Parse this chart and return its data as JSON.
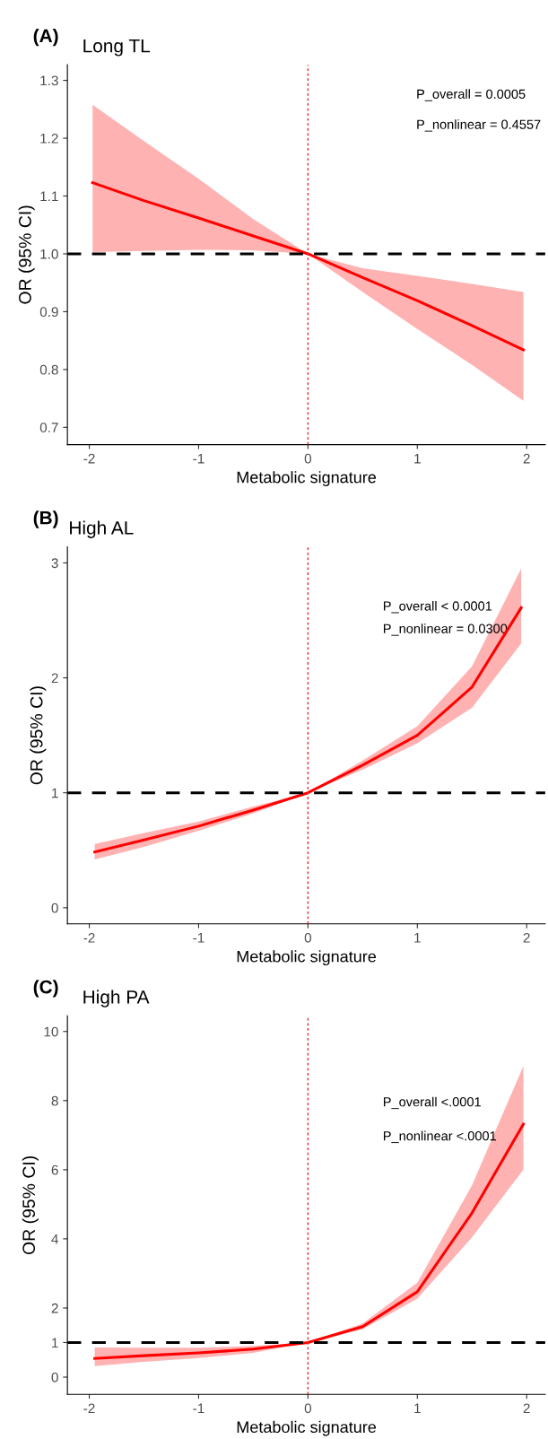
{
  "chart_data": [
    {
      "type": "line",
      "title": "(A)",
      "subtitle": "Long TL",
      "xlabel": "Metabolic signature",
      "ylabel": "OR (95% CI)",
      "xlim": [
        -2.2,
        2.17
      ],
      "xticks": [
        -2,
        -1,
        0,
        1,
        2
      ],
      "ylim": [
        0.67,
        1.327
      ],
      "yticks": [
        0.7,
        0.8,
        0.9,
        {
          "value": 1,
          "label": "1.0"
        },
        1.1,
        1.2,
        1.3
      ],
      "grid": false,
      "legend": false,
      "annotations": [
        "P_overall = 0.0005",
        "P_nonlinear = 0.4557"
      ],
      "ref_lines": [
        {
          "axis": "y",
          "value": 1,
          "color": "#000000",
          "line_style": "dashed"
        },
        {
          "axis": "x",
          "value": 0,
          "color": "#e8262b",
          "line_style": "dotted"
        }
      ],
      "series": [
        {
          "color": "#ff0000",
          "x": [
            -1.97,
            -1.5,
            -1,
            -0.5,
            0,
            0.5,
            1,
            1.5,
            1.97
          ],
          "values": [
            1.123,
            1.092,
            1.062,
            1.031,
            1.0,
            0.959,
            0.919,
            0.876,
            0.834
          ],
          "lower": [
            1.003,
            1.005,
            1.007,
            1.006,
            1.0,
            0.934,
            0.87,
            0.808,
            0.746
          ],
          "upper": [
            1.258,
            1.195,
            1.13,
            1.06,
            1.0,
            0.975,
            0.962,
            0.948,
            0.934
          ]
        }
      ]
    },
    {
      "type": "line",
      "title": "(B)",
      "subtitle": "High AL",
      "xlabel": "Metabolic signature",
      "ylabel": "OR (95% CI)",
      "xlim": [
        -2.2,
        2.17
      ],
      "xticks": [
        -2,
        -1,
        0,
        1,
        2
      ],
      "ylim": [
        -0.14,
        3.14
      ],
      "yticks": [
        0,
        1,
        2,
        3
      ],
      "grid": false,
      "legend": false,
      "annotations": [
        "P_overall < 0.0001",
        "P_nonlinear = 0.0300"
      ],
      "ref_lines": [
        {
          "axis": "y",
          "value": 1,
          "color": "#000000",
          "line_style": "dashed"
        },
        {
          "axis": "x",
          "value": 0,
          "color": "#e8262b",
          "line_style": "dotted"
        }
      ],
      "series": [
        {
          "color": "#ff0000",
          "x": [
            -1.95,
            -1.5,
            -1,
            -0.5,
            0,
            0.5,
            1,
            1.5,
            1.95
          ],
          "values": [
            0.485,
            0.59,
            0.71,
            0.85,
            1.0,
            1.24,
            1.5,
            1.92,
            2.61
          ],
          "lower": [
            0.42,
            0.53,
            0.67,
            0.82,
            1.0,
            1.2,
            1.43,
            1.74,
            2.3
          ],
          "upper": [
            0.555,
            0.65,
            0.75,
            0.88,
            1.0,
            1.28,
            1.58,
            2.1,
            2.95
          ]
        }
      ]
    },
    {
      "type": "line",
      "title": "(C)",
      "subtitle": "High PA",
      "xlabel": "Metabolic signature",
      "ylabel": "OR (95% CI)",
      "xlim": [
        -2.2,
        2.17
      ],
      "xticks": [
        -2,
        -1,
        0,
        1,
        2
      ],
      "ylim": [
        -0.5,
        10.45
      ],
      "yticks": [
        0,
        1,
        2,
        4,
        6,
        8,
        10
      ],
      "grid": false,
      "legend": false,
      "annotations": [
        "P_overall <.0001",
        "P_nonlinear <.0001"
      ],
      "ref_lines": [
        {
          "axis": "y",
          "value": 1,
          "color": "#000000",
          "line_style": "dashed"
        },
        {
          "axis": "x",
          "value": 0,
          "color": "#e8262b",
          "line_style": "dotted"
        }
      ],
      "series": [
        {
          "color": "#ff0000",
          "x": [
            -1.95,
            -1.5,
            -1,
            -0.5,
            0,
            0.5,
            1,
            1.5,
            1.97
          ],
          "values": [
            0.54,
            0.62,
            0.7,
            0.81,
            1.0,
            1.46,
            2.47,
            4.75,
            7.32
          ],
          "lower": [
            0.32,
            0.44,
            0.55,
            0.7,
            1.0,
            1.38,
            2.27,
            4.04,
            6.0
          ],
          "upper": [
            0.86,
            0.85,
            0.85,
            0.9,
            1.0,
            1.55,
            2.73,
            5.55,
            9.0
          ]
        }
      ]
    }
  ]
}
